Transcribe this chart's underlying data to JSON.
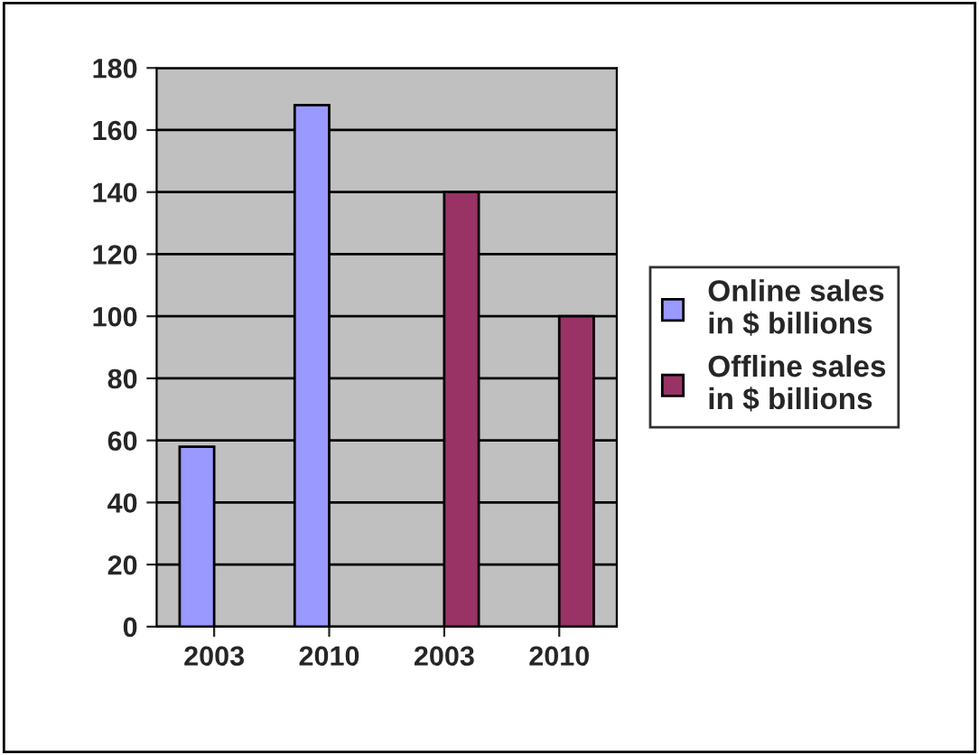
{
  "chart_data": {
    "type": "bar",
    "categories": [
      "2003",
      "2010",
      "2003",
      "2010"
    ],
    "series": [
      {
        "name": "Online sales\nin $ billions",
        "color": "#9999ff",
        "values": [
          58,
          168,
          null,
          null
        ]
      },
      {
        "name": "Offline sales\nin $ billions",
        "color": "#993366",
        "values": [
          null,
          null,
          140,
          100
        ]
      }
    ],
    "ylim": [
      0,
      180
    ],
    "yticks": [
      0,
      20,
      40,
      60,
      80,
      100,
      120,
      140,
      160,
      180
    ],
    "grid": "y",
    "legend": "right"
  }
}
